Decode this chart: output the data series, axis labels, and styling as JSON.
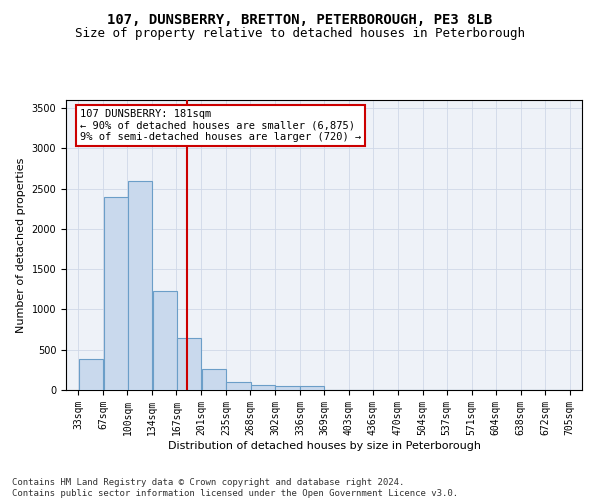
{
  "title": "107, DUNSBERRY, BRETTON, PETERBOROUGH, PE3 8LB",
  "subtitle": "Size of property relative to detached houses in Peterborough",
  "xlabel": "Distribution of detached houses by size in Peterborough",
  "ylabel": "Number of detached properties",
  "bar_color": "#c9d9ed",
  "bar_edge_color": "#6b9ec8",
  "bar_edge_width": 0.8,
  "grid_color": "#d0d8e8",
  "background_color": "#eef2f8",
  "vline_x": 181,
  "vline_color": "#cc0000",
  "annotation_text": "107 DUNSBERRY: 181sqm\n← 90% of detached houses are smaller (6,875)\n9% of semi-detached houses are larger (720) →",
  "annotation_box_color": "#cc0000",
  "bins": [
    33,
    67,
    100,
    134,
    167,
    201,
    235,
    268,
    302,
    336,
    369,
    403,
    436,
    470,
    504,
    537,
    571,
    604,
    638,
    672,
    705
  ],
  "bin_labels": [
    "33sqm",
    "67sqm",
    "100sqm",
    "134sqm",
    "167sqm",
    "201sqm",
    "235sqm",
    "268sqm",
    "302sqm",
    "336sqm",
    "369sqm",
    "403sqm",
    "436sqm",
    "470sqm",
    "504sqm",
    "537sqm",
    "571sqm",
    "604sqm",
    "638sqm",
    "672sqm",
    "705sqm"
  ],
  "values": [
    390,
    2400,
    2600,
    1230,
    640,
    255,
    100,
    60,
    55,
    45,
    0,
    0,
    0,
    0,
    0,
    0,
    0,
    0,
    0,
    0
  ],
  "ylim": [
    0,
    3600
  ],
  "yticks": [
    0,
    500,
    1000,
    1500,
    2000,
    2500,
    3000,
    3500
  ],
  "footnote": "Contains HM Land Registry data © Crown copyright and database right 2024.\nContains public sector information licensed under the Open Government Licence v3.0.",
  "title_fontsize": 10,
  "subtitle_fontsize": 9,
  "axis_label_fontsize": 8,
  "tick_fontsize": 7,
  "annotation_fontsize": 7.5,
  "footnote_fontsize": 6.5
}
